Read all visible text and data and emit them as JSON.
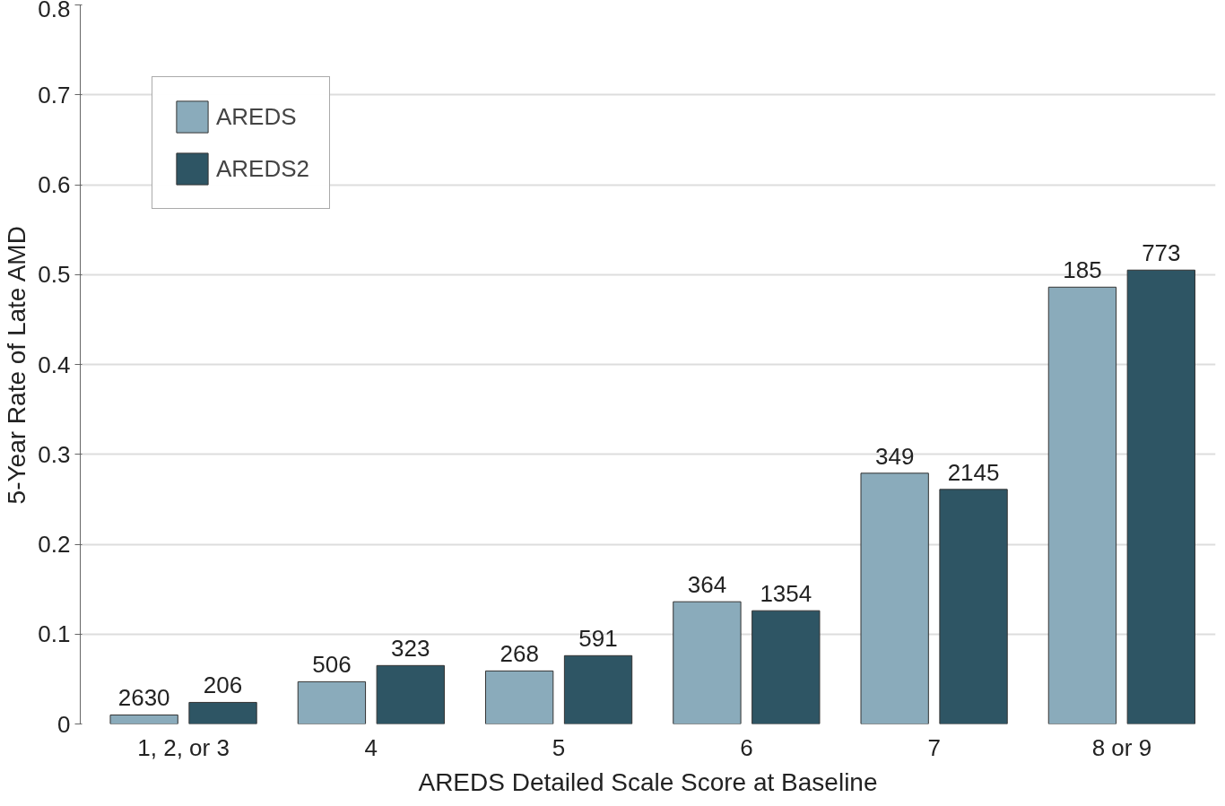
{
  "chart_data": {
    "type": "bar",
    "xlabel": "AREDS Detailed Scale Score at Baseline",
    "ylabel": "5-Year Rate of Late AMD",
    "categories": [
      "1, 2, or 3",
      "4",
      "5",
      "6",
      "7",
      "8 or 9"
    ],
    "series": [
      {
        "name": "AREDS",
        "color": "#8aabbb",
        "values": [
          0.01,
          0.047,
          0.059,
          0.136,
          0.279,
          0.486
        ]
      },
      {
        "name": "AREDS2",
        "color": "#2e5564",
        "values": [
          0.024,
          0.065,
          0.076,
          0.126,
          0.261,
          0.505
        ]
      }
    ],
    "annotations": [
      "2630",
      "506",
      "268",
      "364",
      "349",
      "185",
      "206",
      "323",
      "591",
      "1354",
      "2145",
      "773"
    ],
    "ylim": [
      0,
      0.8
    ],
    "yticks": [
      {
        "value": 0,
        "label": "0"
      },
      0.1,
      0.2,
      0.3,
      0.4,
      0.5,
      0.6,
      0.7,
      0.8
    ],
    "grid": "y",
    "legend": "top left"
  }
}
